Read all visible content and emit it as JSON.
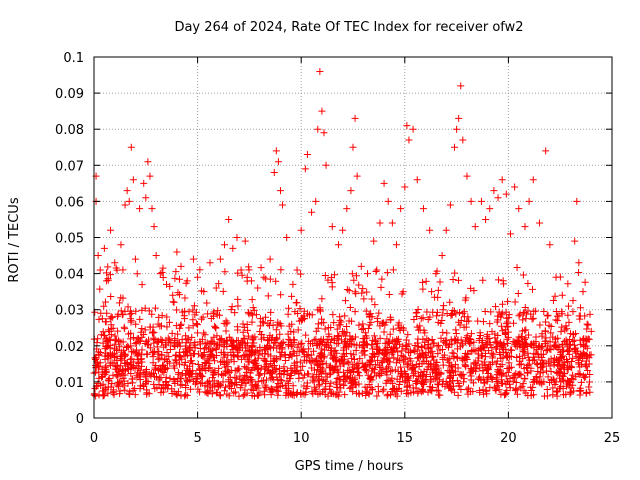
{
  "chart_data": {
    "type": "scatter",
    "title": "Day 264 of 2024, Rate Of TEC Index for receiver ofw2",
    "xlabel": "GPS time / hours",
    "ylabel": "ROTI / TECUs",
    "xlim": [
      0,
      25
    ],
    "ylim": [
      0,
      0.1
    ],
    "xticks": [
      "0",
      "5",
      "10",
      "15",
      "20",
      "25"
    ],
    "yticks": [
      "0",
      "0.01",
      "0.02",
      "0.03",
      "0.04",
      "0.05",
      "0.06",
      "0.07",
      "0.08",
      "0.09",
      "0.1"
    ],
    "grid": true,
    "marker": "plus",
    "color": "#ff0000",
    "series": [
      {
        "points": [
          [
            0.1,
            0.067
          ],
          [
            0.1,
            0.06
          ],
          [
            0.2,
            0.045
          ],
          [
            0.3,
            0.041
          ],
          [
            0.5,
            0.047
          ],
          [
            0.6,
            0.038
          ],
          [
            0.8,
            0.052
          ],
          [
            1.0,
            0.043
          ],
          [
            1.3,
            0.048
          ],
          [
            1.5,
            0.059
          ],
          [
            1.6,
            0.063
          ],
          [
            1.7,
            0.06
          ],
          [
            1.8,
            0.075
          ],
          [
            1.9,
            0.066
          ],
          [
            2.0,
            0.044
          ],
          [
            2.2,
            0.058
          ],
          [
            2.4,
            0.065
          ],
          [
            2.5,
            0.061
          ],
          [
            2.6,
            0.071
          ],
          [
            2.7,
            0.067
          ],
          [
            2.8,
            0.058
          ],
          [
            2.9,
            0.053
          ],
          [
            3.0,
            0.045
          ],
          [
            3.2,
            0.04
          ],
          [
            3.5,
            0.037
          ],
          [
            3.8,
            0.034
          ],
          [
            4.0,
            0.046
          ],
          [
            4.2,
            0.042
          ],
          [
            4.5,
            0.038
          ],
          [
            4.8,
            0.044
          ],
          [
            5.0,
            0.039
          ],
          [
            5.3,
            0.035
          ],
          [
            5.6,
            0.043
          ],
          [
            5.9,
            0.036
          ],
          [
            6.1,
            0.044
          ],
          [
            6.3,
            0.048
          ],
          [
            6.5,
            0.055
          ],
          [
            6.7,
            0.047
          ],
          [
            6.9,
            0.05
          ],
          [
            7.1,
            0.041
          ],
          [
            7.3,
            0.049
          ],
          [
            7.6,
            0.038
          ],
          [
            7.9,
            0.036
          ],
          [
            8.2,
            0.039
          ],
          [
            8.5,
            0.044
          ],
          [
            8.7,
            0.068
          ],
          [
            8.8,
            0.074
          ],
          [
            8.9,
            0.071
          ],
          [
            9.0,
            0.063
          ],
          [
            9.1,
            0.059
          ],
          [
            9.3,
            0.05
          ],
          [
            9.6,
            0.037
          ],
          [
            9.8,
            0.041
          ],
          [
            10.0,
            0.052
          ],
          [
            10.2,
            0.069
          ],
          [
            10.3,
            0.073
          ],
          [
            10.5,
            0.057
          ],
          [
            10.7,
            0.06
          ],
          [
            10.8,
            0.08
          ],
          [
            10.9,
            0.096
          ],
          [
            11.0,
            0.085
          ],
          [
            11.1,
            0.079
          ],
          [
            11.2,
            0.07
          ],
          [
            11.5,
            0.053
          ],
          [
            11.8,
            0.048
          ],
          [
            12.0,
            0.052
          ],
          [
            12.2,
            0.058
          ],
          [
            12.4,
            0.063
          ],
          [
            12.5,
            0.075
          ],
          [
            12.6,
            0.083
          ],
          [
            12.7,
            0.067
          ],
          [
            12.9,
            0.042
          ],
          [
            13.2,
            0.04
          ],
          [
            13.5,
            0.049
          ],
          [
            13.8,
            0.054
          ],
          [
            14.0,
            0.065
          ],
          [
            14.2,
            0.06
          ],
          [
            14.4,
            0.054
          ],
          [
            14.6,
            0.048
          ],
          [
            14.8,
            0.058
          ],
          [
            15.0,
            0.064
          ],
          [
            15.1,
            0.081
          ],
          [
            15.2,
            0.077
          ],
          [
            15.4,
            0.08
          ],
          [
            15.6,
            0.066
          ],
          [
            15.9,
            0.058
          ],
          [
            16.2,
            0.052
          ],
          [
            16.5,
            0.04
          ],
          [
            16.8,
            0.045
          ],
          [
            17.0,
            0.052
          ],
          [
            17.2,
            0.059
          ],
          [
            17.4,
            0.075
          ],
          [
            17.5,
            0.08
          ],
          [
            17.6,
            0.083
          ],
          [
            17.7,
            0.092
          ],
          [
            17.8,
            0.077
          ],
          [
            18.0,
            0.067
          ],
          [
            18.2,
            0.06
          ],
          [
            18.4,
            0.053
          ],
          [
            18.7,
            0.06
          ],
          [
            18.9,
            0.055
          ],
          [
            19.1,
            0.058
          ],
          [
            19.3,
            0.063
          ],
          [
            19.5,
            0.061
          ],
          [
            19.7,
            0.066
          ],
          [
            19.9,
            0.062
          ],
          [
            20.1,
            0.051
          ],
          [
            20.3,
            0.064
          ],
          [
            20.5,
            0.058
          ],
          [
            20.8,
            0.053
          ],
          [
            21.0,
            0.06
          ],
          [
            21.2,
            0.066
          ],
          [
            21.5,
            0.054
          ],
          [
            21.8,
            0.074
          ],
          [
            22.0,
            0.048
          ],
          [
            22.3,
            0.039
          ],
          [
            22.6,
            0.034
          ],
          [
            22.9,
            0.031
          ],
          [
            23.2,
            0.049
          ],
          [
            23.3,
            0.06
          ],
          [
            23.4,
            0.043
          ],
          [
            23.6,
            0.035
          ],
          [
            23.8,
            0.026
          ],
          [
            24.0,
            0.024
          ]
        ]
      }
    ]
  }
}
